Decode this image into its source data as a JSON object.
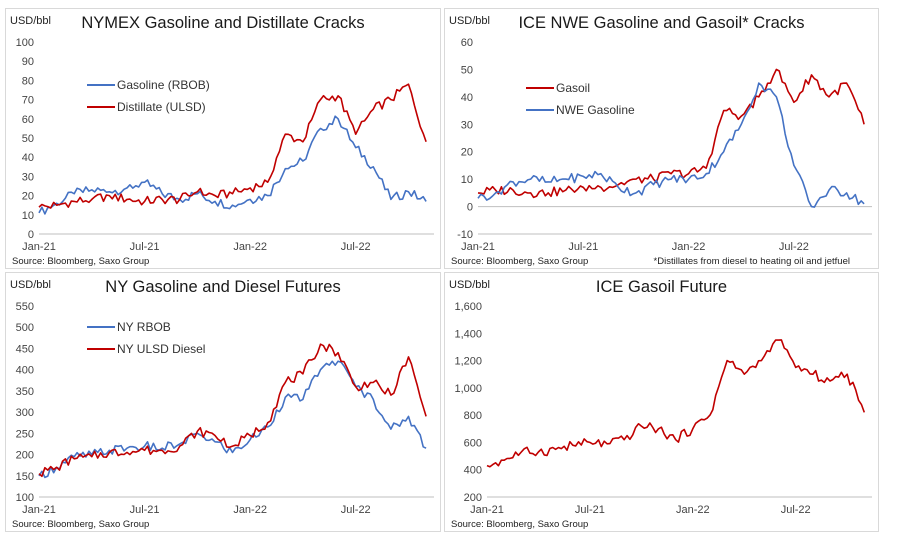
{
  "panels": [
    {
      "title": "NYMEX Gasoline and Distillate Cracks",
      "unit": "USD/bbl",
      "source": "Source: Bloomberg, Saxo Group",
      "footnote": ""
    },
    {
      "title": "ICE NWE Gasoline and Gasoil* Cracks",
      "unit": "USD/bbl",
      "source": "Source: Bloomberg, Saxo Group",
      "footnote": "*Distillates from diesel to heating oil and jetfuel"
    },
    {
      "title": "NY Gasoline and Diesel Futures",
      "unit": "USD/bbl",
      "source": "Source: Bloomberg, Saxo Group",
      "footnote": ""
    },
    {
      "title": "ICE Gasoil Future",
      "unit": "USD/bbl",
      "source": "Source: Bloomberg, Saxo Group",
      "footnote": ""
    }
  ],
  "chart_data": [
    {
      "type": "line",
      "title": "NYMEX Gasoline and Distillate Cracks",
      "ylabel": "USD/bbl",
      "ylim": [
        0,
        100
      ],
      "yticks": [
        "0",
        "10",
        "20",
        "30",
        "40",
        "50",
        "60",
        "70",
        "80",
        "90",
        "100"
      ],
      "xticks": [
        "Jan-21",
        "Jul-21",
        "Jan-22",
        "Jul-22"
      ],
      "x": [
        "2021-01",
        "2021-02",
        "2021-03",
        "2021-04",
        "2021-05",
        "2021-06",
        "2021-07",
        "2021-08",
        "2021-09",
        "2021-10",
        "2021-11",
        "2021-12",
        "2022-01",
        "2022-02",
        "2022-03",
        "2022-04",
        "2022-05",
        "2022-06",
        "2022-07",
        "2022-08",
        "2022-09",
        "2022-10",
        "2022-11"
      ],
      "legend": "left",
      "series": [
        {
          "name": "Gasoline (RBOB)",
          "color": "#4472c4",
          "values": [
            11,
            16,
            21,
            23,
            22,
            24,
            27,
            21,
            18,
            21,
            17,
            15,
            18,
            20,
            34,
            38,
            55,
            60,
            45,
            35,
            18,
            22,
            17
          ]
        },
        {
          "name": "Distillate (ULSD)",
          "color": "#c00000",
          "values": [
            14,
            15,
            17,
            18,
            20,
            18,
            17,
            18,
            18,
            22,
            20,
            21,
            24,
            27,
            52,
            48,
            70,
            72,
            52,
            65,
            70,
            78,
            48
          ]
        }
      ]
    },
    {
      "type": "line",
      "title": "ICE NWE Gasoline and Gasoil* Cracks",
      "ylabel": "USD/bbl",
      "ylim": [
        -10,
        60
      ],
      "yticks": [
        "-10",
        "0",
        "10",
        "20",
        "30",
        "40",
        "50",
        "60"
      ],
      "xticks": [
        "Jan-21",
        "Jul-21",
        "Jan-22",
        "Jul-22"
      ],
      "x": [
        "2021-01",
        "2021-02",
        "2021-03",
        "2021-04",
        "2021-05",
        "2021-06",
        "2021-07",
        "2021-08",
        "2021-09",
        "2021-10",
        "2021-11",
        "2021-12",
        "2022-01",
        "2022-02",
        "2022-03",
        "2022-04",
        "2022-05",
        "2022-06",
        "2022-07",
        "2022-08",
        "2022-09",
        "2022-10",
        "2022-11"
      ],
      "legend": "left",
      "series": [
        {
          "name": "Gasoil",
          "color": "#c00000",
          "values": [
            5,
            6,
            6,
            5,
            5,
            6,
            7,
            7,
            8,
            10,
            10,
            12,
            12,
            14,
            35,
            33,
            40,
            50,
            38,
            48,
            40,
            45,
            30
          ]
        },
        {
          "name": "NWE Gasoline",
          "color": "#4472c4",
          "values": [
            3,
            5,
            9,
            10,
            9,
            10,
            11,
            12,
            7,
            5,
            8,
            10,
            10,
            12,
            20,
            30,
            45,
            40,
            15,
            0,
            6,
            5,
            1
          ]
        }
      ]
    },
    {
      "type": "line",
      "title": "NY Gasoline and Diesel Futures",
      "ylabel": "USD/bbl",
      "ylim": [
        100,
        550
      ],
      "yticks": [
        "100",
        "150",
        "200",
        "250",
        "300",
        "350",
        "400",
        "450",
        "500",
        "550"
      ],
      "xticks": [
        "Jan-21",
        "Jul-21",
        "Jan-22",
        "Jul-22"
      ],
      "x": [
        "2021-01",
        "2021-02",
        "2021-03",
        "2021-04",
        "2021-05",
        "2021-06",
        "2021-07",
        "2021-08",
        "2021-09",
        "2021-10",
        "2021-11",
        "2021-12",
        "2022-01",
        "2022-02",
        "2022-03",
        "2022-04",
        "2022-05",
        "2022-06",
        "2022-07",
        "2022-08",
        "2022-09",
        "2022-10",
        "2022-11"
      ],
      "legend": "left",
      "series": [
        {
          "name": "NY RBOB",
          "color": "#4472c4",
          "values": [
            150,
            170,
            195,
            200,
            210,
            215,
            220,
            215,
            225,
            250,
            230,
            205,
            235,
            265,
            335,
            330,
            400,
            420,
            360,
            330,
            260,
            290,
            215
          ]
        },
        {
          "name": "NY ULSD Diesel",
          "color": "#c00000",
          "values": [
            155,
            170,
            190,
            195,
            205,
            205,
            210,
            210,
            220,
            255,
            245,
            220,
            245,
            275,
            370,
            390,
            460,
            440,
            360,
            370,
            340,
            430,
            290
          ]
        }
      ]
    },
    {
      "type": "line",
      "title": "ICE Gasoil Future",
      "ylabel": "USD/bbl",
      "ylim": [
        200,
        1600
      ],
      "yticks": [
        "200",
        "400",
        "600",
        "800",
        "1,000",
        "1,200",
        "1,400",
        "1,600"
      ],
      "xticks": [
        "Jan-21",
        "Jul-21",
        "Jan-22",
        "Jul-22"
      ],
      "x": [
        "2021-01",
        "2021-02",
        "2021-03",
        "2021-04",
        "2021-05",
        "2021-06",
        "2021-07",
        "2021-08",
        "2021-09",
        "2021-10",
        "2021-11",
        "2021-12",
        "2022-01",
        "2022-02",
        "2022-03",
        "2022-04",
        "2022-05",
        "2022-06",
        "2022-07",
        "2022-08",
        "2022-09",
        "2022-10",
        "2022-11"
      ],
      "legend": "none",
      "series": [
        {
          "name": "",
          "color": "#c00000",
          "values": [
            430,
            470,
            530,
            530,
            550,
            580,
            600,
            590,
            620,
            720,
            700,
            620,
            700,
            800,
            1200,
            1100,
            1200,
            1350,
            1150,
            1100,
            1050,
            1100,
            820
          ]
        }
      ]
    }
  ]
}
